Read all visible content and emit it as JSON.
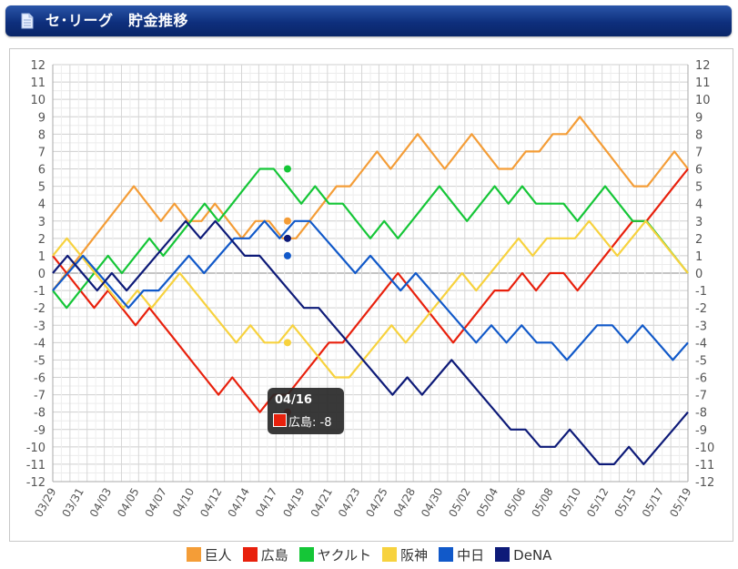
{
  "header": {
    "title": "セ･リーグ　貯金推移",
    "icon": "document-icon"
  },
  "chart_data": {
    "type": "line",
    "title": "セ･リーグ　貯金推移",
    "ylim": [
      -12,
      12
    ],
    "yticks": [
      12,
      11,
      10,
      9,
      8,
      7,
      6,
      5,
      4,
      3,
      2,
      1,
      0,
      -1,
      -2,
      -3,
      -4,
      -5,
      -6,
      -7,
      -8,
      -9,
      -10,
      -11,
      -12
    ],
    "xticks": [
      "03/29",
      "03/31",
      "04/03",
      "04/05",
      "04/07",
      "04/10",
      "04/12",
      "04/14",
      "04/17",
      "04/19",
      "04/21",
      "04/23",
      "04/25",
      "04/28",
      "04/30",
      "05/02",
      "05/04",
      "05/06",
      "05/08",
      "05/10",
      "05/12",
      "05/15",
      "05/17",
      "05/19"
    ],
    "points_count": 37,
    "grid": true,
    "series": [
      {
        "name": "巨人",
        "color": "#f49d37",
        "values": [
          -1,
          0,
          1,
          2,
          3,
          4,
          5,
          4,
          3,
          4,
          3,
          3,
          4,
          3,
          2,
          3,
          3,
          2,
          2,
          3,
          4,
          5,
          5,
          6,
          7,
          6,
          7,
          8,
          7,
          6,
          7,
          8,
          7,
          6,
          6,
          7,
          7,
          8,
          8,
          9,
          8,
          7,
          6,
          5,
          5,
          6,
          7,
          6
        ]
      },
      {
        "name": "広島",
        "color": "#e8200c",
        "values": [
          1,
          0,
          -1,
          -2,
          -1,
          -2,
          -3,
          -2,
          -3,
          -4,
          -5,
          -6,
          -7,
          -6,
          -7,
          -8,
          -7,
          -7,
          -6,
          -5,
          -4,
          -4,
          -3,
          -2,
          -1,
          0,
          -1,
          -2,
          -3,
          -4,
          -3,
          -2,
          -1,
          -1,
          0,
          -1,
          0,
          0,
          -1,
          0,
          1,
          2,
          3,
          3,
          4,
          5,
          6
        ]
      },
      {
        "name": "ヤクルト",
        "color": "#15c637",
        "values": [
          -1,
          -2,
          -1,
          0,
          1,
          0,
          1,
          2,
          1,
          2,
          3,
          4,
          3,
          4,
          5,
          6,
          6,
          5,
          4,
          5,
          4,
          4,
          3,
          2,
          3,
          2,
          3,
          4,
          5,
          4,
          3,
          4,
          5,
          4,
          5,
          4,
          4,
          4,
          3,
          4,
          5,
          4,
          3,
          3,
          2,
          1,
          0
        ]
      },
      {
        "name": "阪神",
        "color": "#f7d23e",
        "values": [
          1,
          2,
          1,
          0,
          -1,
          -2,
          -1,
          -2,
          -1,
          0,
          -1,
          -2,
          -3,
          -4,
          -3,
          -4,
          -4,
          -3,
          -4,
          -5,
          -6,
          -6,
          -5,
          -4,
          -3,
          -4,
          -3,
          -2,
          -1,
          0,
          -1,
          0,
          1,
          2,
          1,
          2,
          2,
          2,
          3,
          2,
          1,
          2,
          3,
          2,
          1,
          0
        ]
      },
      {
        "name": "中日",
        "color": "#1159c9",
        "values": [
          -1,
          0,
          1,
          0,
          -1,
          -2,
          -1,
          -1,
          0,
          1,
          0,
          1,
          2,
          2,
          3,
          2,
          3,
          3,
          2,
          1,
          0,
          1,
          0,
          -1,
          0,
          -1,
          -2,
          -3,
          -4,
          -3,
          -4,
          -3,
          -4,
          -4,
          -5,
          -4,
          -3,
          -3,
          -4,
          -3,
          -4,
          -5,
          -4
        ]
      },
      {
        "name": "DeNA",
        "color": "#0d1a78",
        "values": [
          0,
          1,
          0,
          -1,
          0,
          -1,
          0,
          1,
          2,
          3,
          2,
          3,
          2,
          1,
          1,
          0,
          -1,
          -2,
          -2,
          -3,
          -4,
          -5,
          -6,
          -7,
          -6,
          -7,
          -6,
          -5,
          -6,
          -7,
          -8,
          -9,
          -9,
          -10,
          -10,
          -9,
          -10,
          -11,
          -11,
          -10,
          -11,
          -10,
          -9,
          -8
        ]
      }
    ]
  },
  "tooltip": {
    "date": "04/16",
    "label": "広島: -8",
    "color": "#e8200c"
  },
  "legend": [
    {
      "name": "巨人",
      "color": "#f49d37"
    },
    {
      "name": "広島",
      "color": "#e8200c"
    },
    {
      "name": "ヤクルト",
      "color": "#15c637"
    },
    {
      "name": "阪神",
      "color": "#f7d23e"
    },
    {
      "name": "中日",
      "color": "#1159c9"
    },
    {
      "name": "DeNA",
      "color": "#0d1a78"
    }
  ]
}
